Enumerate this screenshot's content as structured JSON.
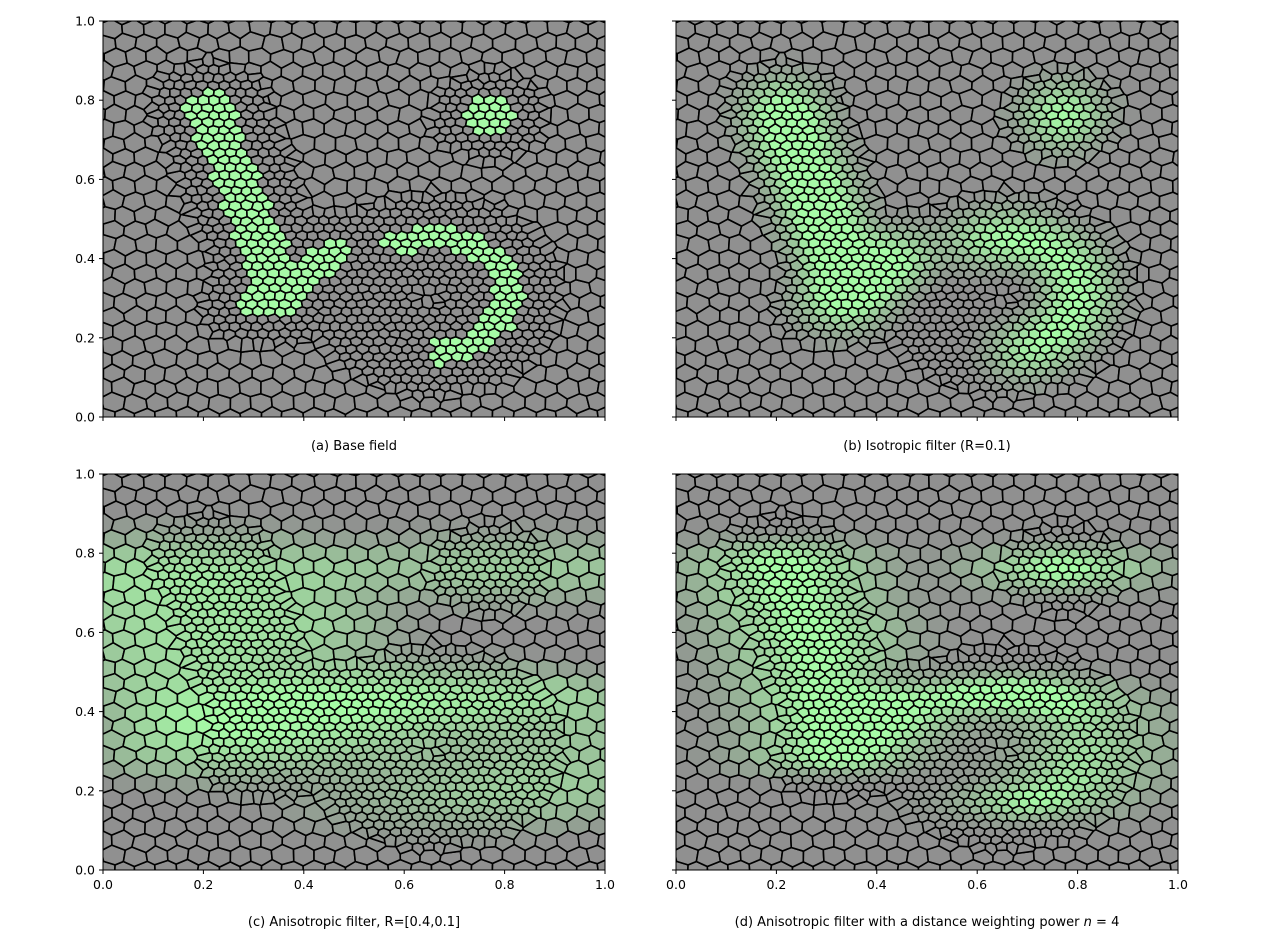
{
  "figure": {
    "panels": [
      {
        "id": "a",
        "caption": "(a) Base field",
        "filter": "base",
        "show_x_tick_labels": false,
        "show_y_tick_labels": true
      },
      {
        "id": "b",
        "caption": "(b) Isotropic filter (R=0.1)",
        "filter": "iso",
        "show_x_tick_labels": false,
        "show_y_tick_labels": false
      },
      {
        "id": "c",
        "caption": "(c) Anisotropic filter, R=[0.4,0.1]",
        "filter": "aniso",
        "show_x_tick_labels": true,
        "show_y_tick_labels": true
      },
      {
        "id": "d",
        "caption_prefix": "(d) Anisotropic filter with a distance weighting power ",
        "caption_math": "n",
        "caption_suffix": " = 4",
        "filter": "weighted",
        "show_x_tick_labels": true,
        "show_y_tick_labels": false
      }
    ],
    "axes": {
      "xlim": [
        0.0,
        1.0
      ],
      "ylim": [
        0.0,
        1.0
      ],
      "x_ticks": [
        0.0,
        0.2,
        0.4,
        0.6,
        0.8,
        1.0
      ],
      "x_tick_labels": [
        "0.0",
        "0.2",
        "0.4",
        "0.6",
        "0.8",
        "1.0"
      ],
      "y_ticks": [
        0.0,
        0.2,
        0.4,
        0.6,
        0.8,
        1.0
      ],
      "y_tick_labels": [
        "0.0",
        "0.2",
        "0.4",
        "0.6",
        "0.8",
        "1.0"
      ]
    },
    "colors": {
      "solid": "#a6fba6",
      "void": "#909090",
      "cell_edge": "#000000"
    }
  }
}
